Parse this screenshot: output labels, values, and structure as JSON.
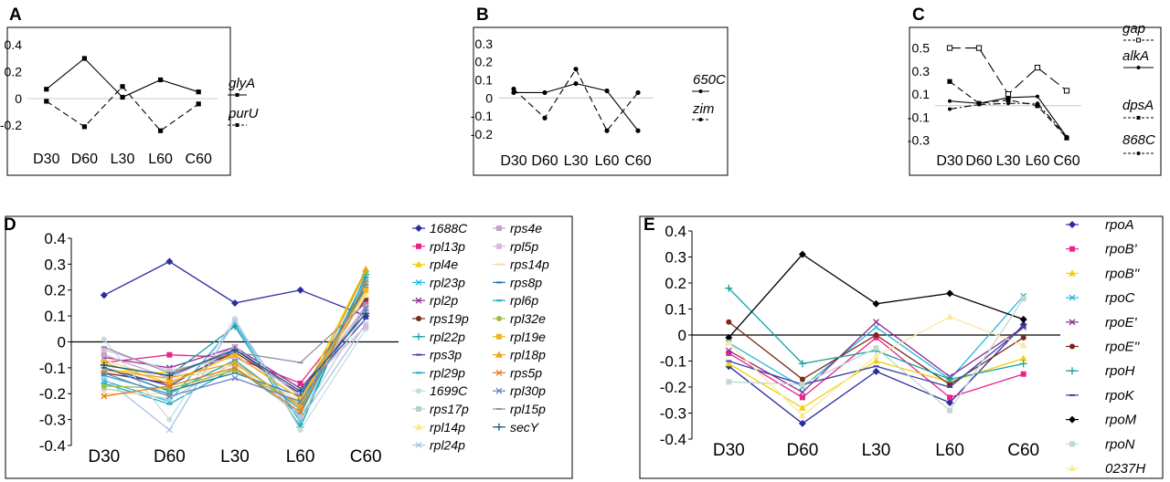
{
  "chart_data": [
    {
      "panel": "A",
      "type": "line",
      "categories": [
        "D30",
        "D60",
        "L30",
        "L60",
        "C60"
      ],
      "yticks": [
        "0.4",
        "0.2",
        "0",
        "-0.2"
      ],
      "ylim": [
        -0.3,
        0.45
      ],
      "legend_position": "right",
      "series": [
        {
          "name": "glyA",
          "values": [
            0.07,
            0.3,
            0.01,
            0.14,
            0.05
          ],
          "color": "#000000",
          "dash": "solid",
          "marker": "square"
        },
        {
          "name": "purU",
          "values": [
            -0.02,
            -0.21,
            0.09,
            -0.24,
            -0.04
          ],
          "color": "#000000",
          "dash": "dashed",
          "marker": "square"
        }
      ]
    },
    {
      "panel": "B",
      "type": "line",
      "categories": [
        "D30",
        "D60",
        "L30",
        "L60",
        "C60"
      ],
      "yticks": [
        "0.3",
        "0.2",
        "0.1",
        "0",
        "-0.1",
        "-0.2"
      ],
      "ylim": [
        -0.24,
        0.33
      ],
      "legend_position": "right",
      "series": [
        {
          "name": "650C",
          "values": [
            0.03,
            0.03,
            0.08,
            0.04,
            -0.18
          ],
          "color": "#000000",
          "dash": "solid",
          "marker": "circle"
        },
        {
          "name": "zim",
          "values": [
            0.05,
            -0.11,
            0.16,
            -0.18,
            0.03
          ],
          "color": "#000000",
          "dash": "dashed",
          "marker": "circle"
        }
      ]
    },
    {
      "panel": "C",
      "type": "line",
      "categories": [
        "D30",
        "D60",
        "L30",
        "L60",
        "C60"
      ],
      "yticks": [
        "0.5",
        "0.3",
        "0.1",
        "-0.1",
        "-0.3"
      ],
      "ylim": [
        -0.35,
        0.56
      ],
      "legend_position": "right",
      "series": [
        {
          "name": "gap",
          "values": [
            0.5,
            0.5,
            0.1,
            0.33,
            0.13
          ],
          "color": "#000000",
          "dash": "longdash",
          "marker": "open-square"
        },
        {
          "name": "alkA",
          "values": [
            0.04,
            0.02,
            0.07,
            0.08,
            -0.27
          ],
          "color": "#000000",
          "dash": "solid",
          "marker": "dot"
        },
        {
          "name": "dpsA",
          "values": [
            0.21,
            0.02,
            0.05,
            0.0,
            -0.28
          ],
          "color": "#000000",
          "dash": "dashed",
          "marker": "square"
        },
        {
          "name": "868C",
          "values": [
            -0.03,
            0.01,
            0.02,
            0.02,
            -0.27
          ],
          "color": "#000000",
          "dash": "dashdot",
          "marker": "dot"
        }
      ]
    },
    {
      "panel": "D",
      "type": "line",
      "categories": [
        "D30",
        "D60",
        "L30",
        "L60",
        "C60"
      ],
      "yticks": [
        "0.4",
        "0.3",
        "0.2",
        "0.1",
        "0",
        "-0.1",
        "-0.2",
        "-0.3",
        "-0.4"
      ],
      "ylim": [
        -0.4,
        0.4
      ],
      "legend_position": "right",
      "series": [
        {
          "name": "1688C",
          "values": [
            0.18,
            0.31,
            0.15,
            0.2,
            0.1
          ],
          "color": "#2c2ca0",
          "marker": "diamond"
        },
        {
          "name": "rpl13p",
          "values": [
            -0.08,
            -0.05,
            -0.06,
            -0.16,
            0.16
          ],
          "color": "#e8248c",
          "marker": "square"
        },
        {
          "name": "rpl4e",
          "values": [
            -0.11,
            -0.12,
            -0.05,
            -0.22,
            0.28
          ],
          "color": "#f0d010",
          "marker": "triangle"
        },
        {
          "name": "rpl23p",
          "values": [
            -0.15,
            -0.23,
            0.07,
            -0.31,
            0.24
          ],
          "color": "#20b8e0",
          "marker": "x"
        },
        {
          "name": "rpl2p",
          "values": [
            -0.06,
            -0.1,
            -0.02,
            -0.18,
            0.11
          ],
          "color": "#8a2a8a",
          "marker": "x"
        },
        {
          "name": "rps19p",
          "values": [
            -0.12,
            -0.16,
            -0.04,
            -0.2,
            0.17
          ],
          "color": "#7a2818",
          "marker": "circle"
        },
        {
          "name": "rpl22p",
          "values": [
            -0.09,
            -0.13,
            0.06,
            -0.33,
            0.26
          ],
          "color": "#10a0a0",
          "marker": "plus"
        },
        {
          "name": "rps3p",
          "values": [
            -0.1,
            -0.17,
            -0.03,
            -0.2,
            0.09
          ],
          "color": "#3840a8",
          "marker": "dash"
        },
        {
          "name": "rpl29p",
          "values": [
            -0.16,
            -0.24,
            -0.1,
            -0.28,
            0.22
          ],
          "color": "#20a8c0",
          "marker": "dash"
        },
        {
          "name": "1699C",
          "values": [
            0.01,
            -0.3,
            0.09,
            -0.34,
            0.05
          ],
          "color": "#c8dce0",
          "marker": "circle"
        },
        {
          "name": "rps17p",
          "values": [
            -0.18,
            -0.22,
            -0.08,
            -0.29,
            0.12
          ],
          "color": "#b8d0c8",
          "marker": "square"
        },
        {
          "name": "rpl14p",
          "values": [
            -0.2,
            -0.2,
            -0.1,
            -0.25,
            0.18
          ],
          "color": "#f8e888",
          "marker": "triangle"
        },
        {
          "name": "rpl24p",
          "values": [
            -0.14,
            -0.34,
            0.08,
            -0.3,
            0.07
          ],
          "color": "#a8c0e8",
          "marker": "x"
        },
        {
          "name": "rps4e",
          "values": [
            -0.05,
            -0.14,
            -0.02,
            -0.21,
            0.14
          ],
          "color": "#c8a0c8",
          "marker": "square"
        },
        {
          "name": "rpl5p",
          "values": [
            -0.03,
            -0.11,
            -0.06,
            -0.19,
            0.06
          ],
          "color": "#d8b8d8",
          "marker": "square"
        },
        {
          "name": "rps14p",
          "values": [
            -0.07,
            -0.15,
            -0.09,
            -0.23,
            0.19
          ],
          "color": "#f0d8a8",
          "marker": "dash"
        },
        {
          "name": "rps8p",
          "values": [
            -0.1,
            -0.19,
            -0.12,
            -0.21,
            0.21
          ],
          "color": "#1878b8",
          "marker": "dash"
        },
        {
          "name": "rpl6p",
          "values": [
            -0.13,
            -0.2,
            -0.07,
            -0.26,
            0.25
          ],
          "color": "#20a8c8",
          "marker": "dash"
        },
        {
          "name": "rpl32e",
          "values": [
            -0.17,
            -0.18,
            -0.11,
            -0.24,
            0.27
          ],
          "color": "#98c040",
          "marker": "circle"
        },
        {
          "name": "rpl19e",
          "values": [
            -0.08,
            -0.16,
            -0.05,
            -0.22,
            0.2
          ],
          "color": "#f0b818",
          "marker": "square"
        },
        {
          "name": "rpl18p",
          "values": [
            -0.11,
            -0.14,
            -0.08,
            -0.25,
            0.28
          ],
          "color": "#f0a020",
          "marker": "triangle"
        },
        {
          "name": "rps5p",
          "values": [
            -0.21,
            -0.17,
            -0.1,
            -0.27,
            0.23
          ],
          "color": "#e87820",
          "marker": "x"
        },
        {
          "name": "rpl30p",
          "values": [
            -0.12,
            -0.21,
            -0.14,
            -0.23,
            0.13
          ],
          "color": "#7080c0",
          "marker": "x"
        },
        {
          "name": "rpl15p",
          "values": [
            -0.02,
            -0.12,
            -0.04,
            -0.08,
            0.15
          ],
          "color": "#9090b0",
          "marker": "dash"
        },
        {
          "name": "secY",
          "values": [
            -0.09,
            -0.13,
            -0.03,
            -0.19,
            0.11
          ],
          "color": "#185880",
          "marker": "plus"
        }
      ]
    },
    {
      "panel": "E",
      "type": "line",
      "categories": [
        "D30",
        "D60",
        "L30",
        "L60",
        "C60"
      ],
      "yticks": [
        "0.4",
        "0.3",
        "0.2",
        "0.1",
        "0",
        "-0.1",
        "-0.2",
        "-0.3",
        "-0.4"
      ],
      "ylim": [
        -0.4,
        0.4
      ],
      "legend_position": "right",
      "series": [
        {
          "name": "rpoA",
          "values": [
            -0.12,
            -0.34,
            -0.14,
            -0.26,
            0.04
          ],
          "color": "#2c2ca0",
          "marker": "diamond"
        },
        {
          "name": "rpoB'",
          "values": [
            -0.07,
            -0.24,
            -0.01,
            -0.24,
            -0.15
          ],
          "color": "#e8248c",
          "marker": "square"
        },
        {
          "name": "rpoB''",
          "values": [
            -0.11,
            -0.28,
            -0.1,
            -0.18,
            -0.09
          ],
          "color": "#f0d010",
          "marker": "triangle"
        },
        {
          "name": "rpoC",
          "values": [
            -0.03,
            -0.2,
            0.03,
            -0.17,
            0.15
          ],
          "color": "#20b8e0",
          "marker": "x"
        },
        {
          "name": "rpoE'",
          "values": [
            -0.06,
            -0.22,
            0.05,
            -0.16,
            0.03
          ],
          "color": "#8a2a8a",
          "marker": "x"
        },
        {
          "name": "rpoE''",
          "values": [
            0.05,
            -0.17,
            0.0,
            -0.19,
            -0.01
          ],
          "color": "#7a2818",
          "marker": "circle"
        },
        {
          "name": "rpoH",
          "values": [
            0.18,
            -0.11,
            -0.06,
            -0.17,
            -0.11
          ],
          "color": "#10a0a0",
          "marker": "plus"
        },
        {
          "name": "rpoK",
          "values": [
            -0.1,
            -0.19,
            -0.12,
            -0.2,
            0.03
          ],
          "color": "#3840a8",
          "marker": "dash"
        },
        {
          "name": "rpoM",
          "values": [
            -0.01,
            0.31,
            0.12,
            0.16,
            0.06
          ],
          "color": "#000000",
          "marker": "diamond"
        },
        {
          "name": "rpoN",
          "values": [
            -0.18,
            -0.19,
            -0.05,
            -0.29,
            0.14
          ],
          "color": "#c0d8d0",
          "marker": "square"
        },
        {
          "name": "0237H",
          "values": [
            -0.03,
            -0.31,
            -0.08,
            0.07,
            -0.04
          ],
          "color": "#f8e8a0",
          "marker": "triangle"
        }
      ]
    }
  ]
}
